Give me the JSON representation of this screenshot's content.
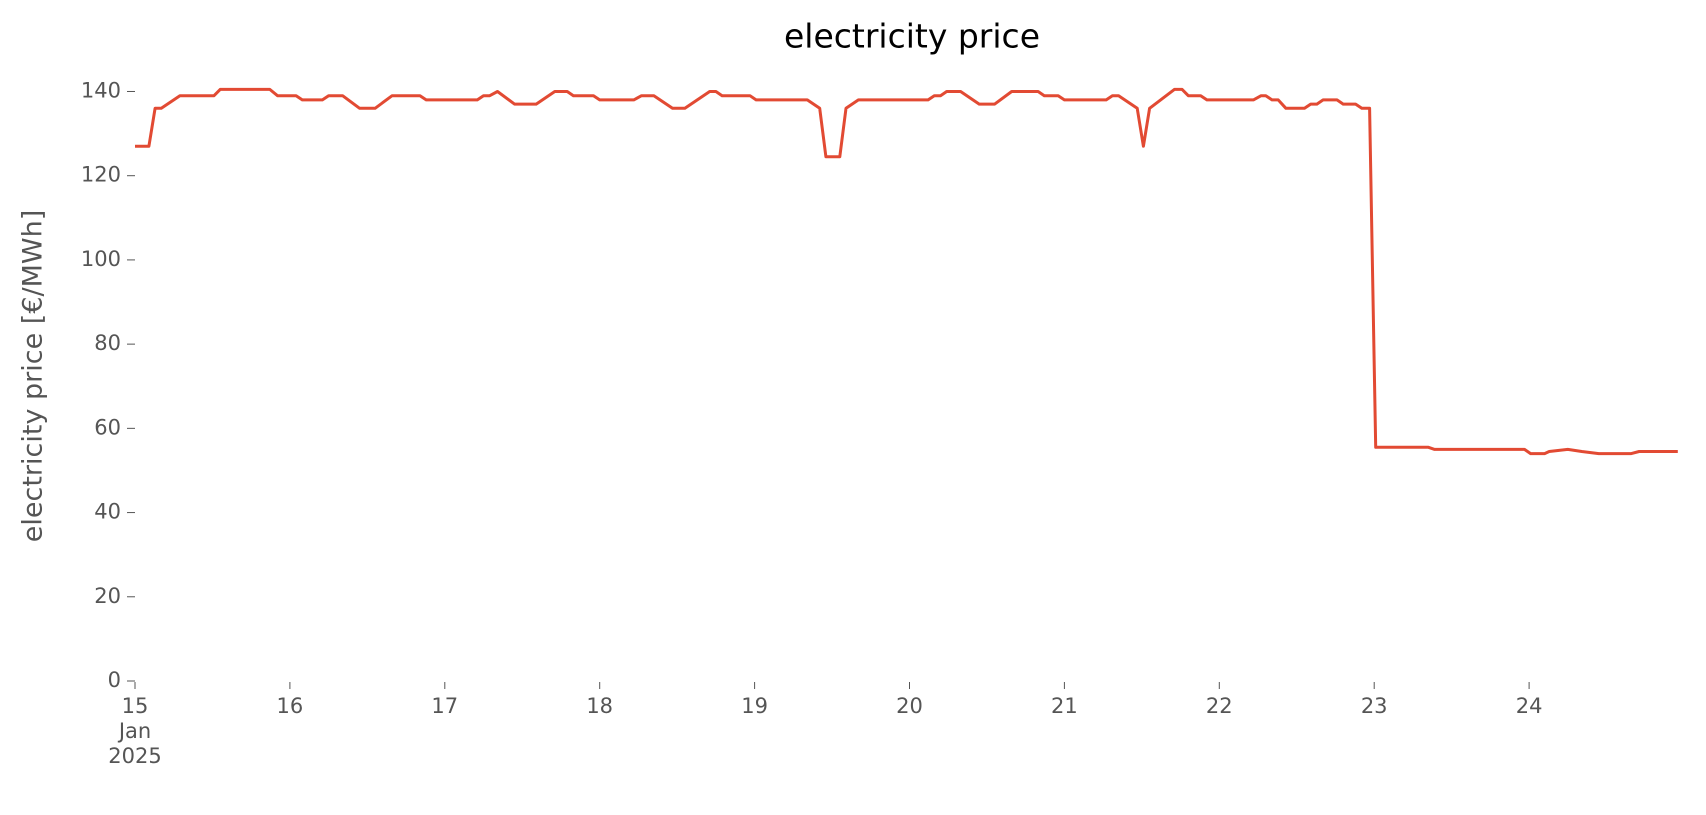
{
  "chart_data": {
    "type": "line",
    "title": "electricity price",
    "ylabel": "electricity price [€/MWh]",
    "x": [
      15.0,
      15.09,
      15.13,
      15.17,
      15.29,
      15.51,
      15.55,
      15.87,
      15.92,
      16.04,
      16.08,
      16.21,
      16.25,
      16.34,
      16.45,
      16.55,
      16.66,
      16.84,
      16.88,
      17.21,
      17.25,
      17.29,
      17.34,
      17.45,
      17.59,
      17.71,
      17.79,
      17.83,
      17.96,
      18.0,
      18.22,
      18.27,
      18.35,
      18.47,
      18.55,
      18.71,
      18.75,
      18.79,
      18.97,
      19.01,
      19.34,
      19.42,
      19.46,
      19.55,
      19.59,
      19.67,
      20.12,
      20.16,
      20.2,
      20.24,
      20.33,
      20.45,
      20.55,
      20.66,
      20.83,
      20.87,
      20.96,
      21.0,
      21.27,
      21.31,
      21.35,
      21.47,
      21.51,
      21.55,
      21.71,
      21.76,
      21.8,
      21.88,
      21.92,
      22.22,
      22.27,
      22.3,
      22.34,
      22.38,
      22.43,
      22.55,
      22.59,
      22.63,
      22.67,
      22.76,
      22.8,
      22.88,
      22.92,
      22.97,
      23.01,
      23.35,
      23.39,
      23.97,
      24.01,
      24.1,
      24.13,
      24.25,
      24.34,
      24.45,
      24.66,
      24.71,
      24.96
    ],
    "series": [
      {
        "name": "electricity price",
        "color": "#E24A33",
        "values": [
          127,
          127,
          136,
          136,
          139,
          139,
          140.5,
          140.5,
          139,
          139,
          138,
          138,
          139,
          139,
          136,
          136,
          139,
          139,
          138,
          138,
          139,
          139,
          140,
          137,
          137,
          140,
          140,
          139,
          139,
          138,
          138,
          139,
          139,
          136,
          136,
          140,
          140,
          139,
          139,
          138,
          138,
          136,
          124.5,
          124.5,
          136,
          138,
          138,
          139,
          139,
          140,
          140,
          137,
          137,
          140,
          140,
          139,
          139,
          138,
          138,
          139,
          139,
          136,
          127,
          136,
          140.5,
          140.5,
          139,
          139,
          138,
          138,
          139,
          139,
          138,
          138,
          136,
          136,
          137,
          137,
          138,
          138,
          137,
          137,
          136,
          136,
          55.5,
          55.5,
          55,
          55,
          54,
          54,
          54.5,
          55,
          54.5,
          54,
          54,
          54.5,
          54.5
        ]
      }
    ],
    "xlim": [
      15,
      25
    ],
    "xticks": [
      {
        "value": 15,
        "label": "15\nJan\n2025"
      },
      16,
      17,
      18,
      19,
      20,
      21,
      22,
      23,
      24
    ],
    "ylim": [
      0,
      147
    ],
    "yticks": [
      0,
      20,
      40,
      60,
      80,
      100,
      120,
      140
    ],
    "grid": false
  }
}
